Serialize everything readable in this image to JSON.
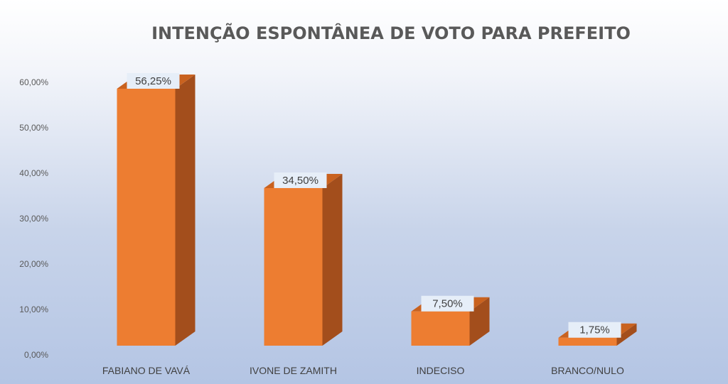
{
  "chart_data": {
    "type": "bar",
    "title": "INTENÇÃO ESPONTÂNEA DE VOTO PARA PREFEITO",
    "categories": [
      "FABIANO DE VAVÁ",
      "IVONE DE ZAMITH",
      "INDECISO",
      "BRANCO/NULO"
    ],
    "values": [
      56.25,
      34.5,
      7.5,
      1.75
    ],
    "data_labels": [
      "56,25%",
      "34,50%",
      "7,50%",
      "1,75%"
    ],
    "y_ticks": [
      "0,00%",
      "10,00%",
      "20,00%",
      "30,00%",
      "40,00%",
      "50,00%",
      "60,00%"
    ],
    "ylim": [
      0,
      60
    ],
    "xlabel": "",
    "ylabel": "",
    "style": "3d-bar",
    "grid": false,
    "legend": "none",
    "colors": {
      "bar_front": "#ED7D31",
      "bar_side": "#A34E1C",
      "bar_top": "#C9621F",
      "label_box": "#E6EEF8"
    }
  }
}
